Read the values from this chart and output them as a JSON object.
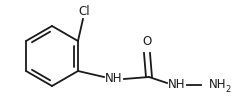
{
  "bg_color": "#ffffff",
  "line_color": "#1a1a1a",
  "line_width": 1.3,
  "font_size_label": 8.5,
  "font_size_subscript": 6.0,
  "figsize": [
    2.36,
    1.08
  ],
  "dpi": 100,
  "cl_label": "Cl",
  "o_label": "O",
  "nh1_label": "NH",
  "nh2_label": "NH",
  "nh2_sub": "2"
}
